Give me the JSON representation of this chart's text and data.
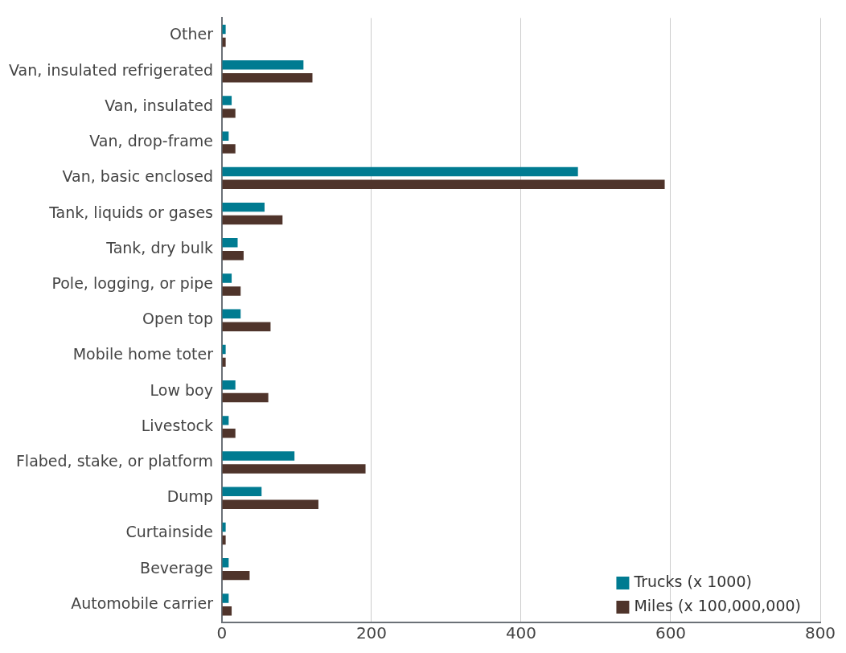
{
  "chart_data": {
    "type": "bar",
    "orientation": "horizontal",
    "categories": [
      "Other",
      "Van, insulated refrigerated",
      "Van, insulated",
      "Van, drop-frame",
      "Van, basic enclosed",
      "Tank, liquids or gases",
      "Tank, dry bulk",
      "Pole, logging, or pipe",
      "Open top",
      "Mobile home toter",
      "Low boy",
      "Livestock",
      "Flabed, stake, or platform",
      "Dump",
      "Curtainside",
      "Beverage",
      "Automobile carrier"
    ],
    "series": [
      {
        "name": "Trucks (x 1000)",
        "color": "#007b91",
        "values": [
          5,
          109,
          13,
          9,
          476,
          57,
          21,
          13,
          25,
          5,
          18,
          9,
          97,
          53,
          5,
          9,
          9
        ]
      },
      {
        "name": "Miles (x 100,000,000)",
        "color": "#4f342b",
        "values": [
          5,
          121,
          18,
          18,
          592,
          81,
          29,
          25,
          65,
          5,
          62,
          18,
          192,
          129,
          5,
          37,
          13
        ]
      }
    ],
    "xlim": [
      0,
      800
    ],
    "xticks": [
      0,
      200,
      400,
      600,
      800
    ],
    "grid": "x",
    "legend": "bottom right"
  }
}
